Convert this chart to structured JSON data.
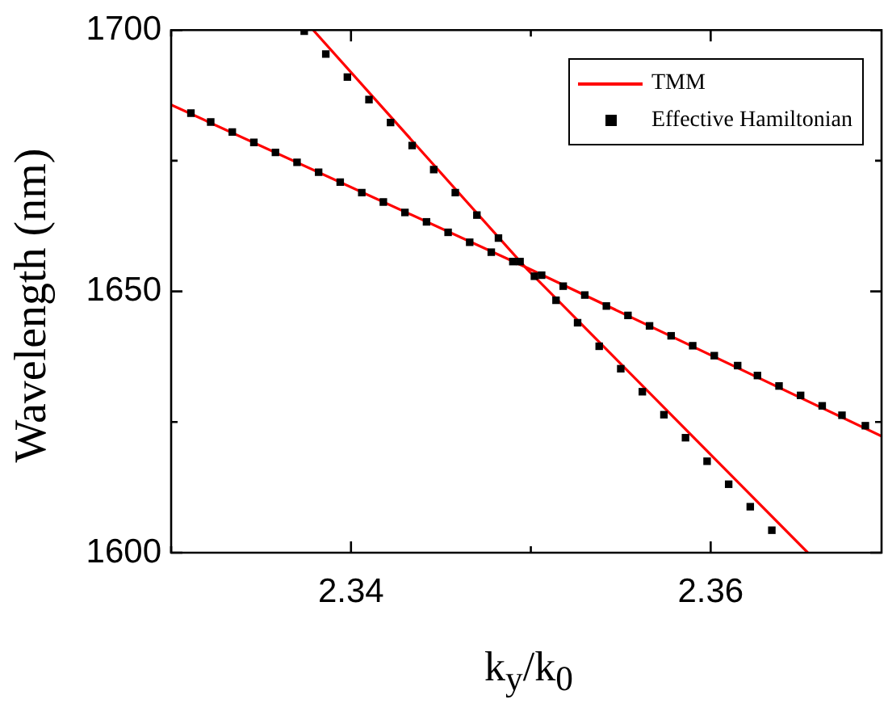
{
  "chart_data": {
    "type": "scatter",
    "xlabel": "k$_{y}$/k$_{0}$",
    "ylabel": "Wavelength (nm)",
    "xlim": [
      2.33,
      2.3695
    ],
    "ylim": [
      1600,
      1700
    ],
    "xticks": [
      {
        "value": 2.33,
        "label": null
      },
      2.34,
      {
        "value": 2.35,
        "label": null
      },
      2.36
    ],
    "yticks": [
      1600,
      {
        "value": 1625,
        "label": null
      },
      1650,
      {
        "value": 1675,
        "label": null
      },
      1700
    ],
    "grid": false,
    "legend": "top right",
    "series": [
      {
        "name": "TMM",
        "type": "line",
        "color": "#ff0000",
        "marker": "none",
        "x": [
          2.33,
          2.3498,
          2.3695
        ],
        "values": [
          1685.7,
          1654.5,
          1622.3
        ]
      },
      {
        "type": "line",
        "color": "#ff0000",
        "marker": "none",
        "x": [
          2.3379,
          2.3498,
          2.3654
        ],
        "values": [
          1700,
          1654.2,
          1600
        ]
      },
      {
        "name": "Effective Hamiltonian",
        "type": "scatter",
        "color": "#000000",
        "marker": "square",
        "x": [
          2.3311,
          2.3322,
          2.3334,
          2.3346,
          2.3358,
          2.337,
          2.3382,
          2.3394,
          2.3406,
          2.3418,
          2.343,
          2.3442,
          2.3454,
          2.3466,
          2.3478,
          2.349,
          2.3502,
          2.3518,
          2.353,
          2.3542,
          2.3554,
          2.3566,
          2.3578,
          2.359,
          2.3602,
          2.3615,
          2.3626,
          2.3638,
          2.365,
          2.3662,
          2.3673,
          2.3686
        ],
        "values": [
          1684.1,
          1682.4,
          1680.5,
          1678.5,
          1676.6,
          1674.7,
          1672.8,
          1670.9,
          1668.9,
          1667.1,
          1665.1,
          1663.3,
          1661.3,
          1659.4,
          1657.5,
          1655.7,
          1652.9,
          1651.0,
          1649.3,
          1647.2,
          1645.4,
          1643.4,
          1641.5,
          1639.6,
          1637.7,
          1635.8,
          1633.9,
          1631.9,
          1630.1,
          1628.1,
          1626.3,
          1624.3
        ]
      },
      {
        "type": "scatter",
        "color": "#000000",
        "marker": "square",
        "x": [
          2.3374,
          2.3386,
          2.3398,
          2.341,
          2.3422,
          2.3434,
          2.3446,
          2.3458,
          2.347,
          2.3482,
          2.3494,
          2.3506,
          2.3514,
          2.3526,
          2.3538,
          2.355,
          2.3562,
          2.3574,
          2.3586,
          2.3598,
          2.361,
          2.3622,
          2.3634
        ],
        "values": [
          1699.8,
          1695.4,
          1691.0,
          1686.7,
          1682.3,
          1677.9,
          1673.3,
          1668.9,
          1664.6,
          1660.2,
          1655.7,
          1653.1,
          1648.3,
          1644.0,
          1639.5,
          1635.2,
          1630.8,
          1626.4,
          1622.0,
          1617.5,
          1613.1,
          1608.8,
          1604.3
        ]
      }
    ]
  }
}
